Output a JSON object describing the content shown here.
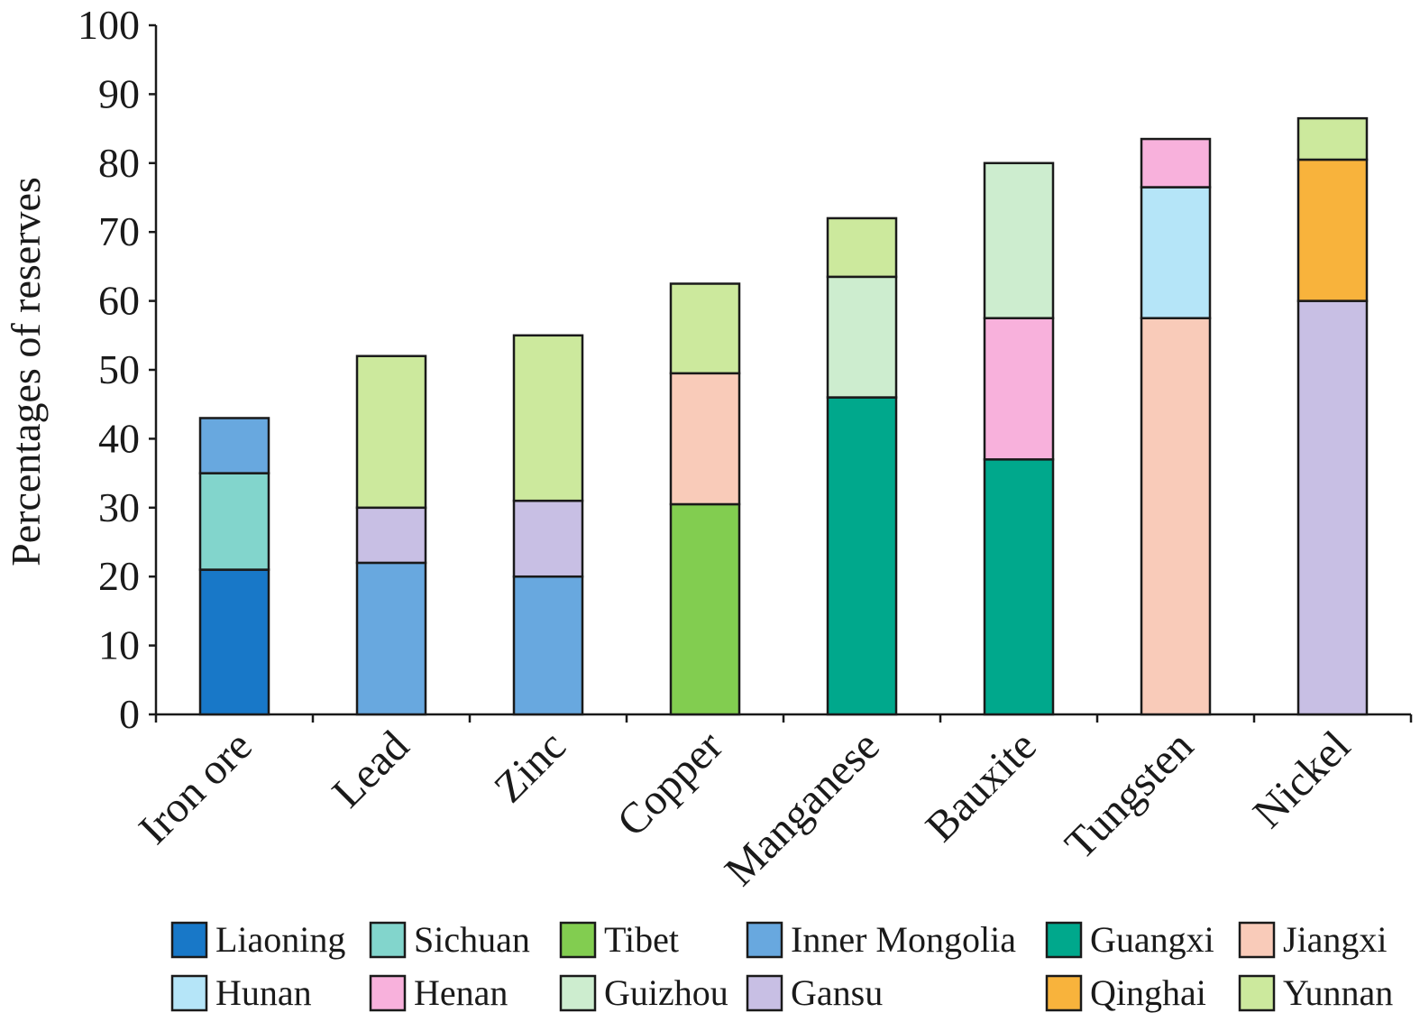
{
  "chart_data": {
    "type": "bar",
    "stacked": true,
    "title": "",
    "xlabel": "",
    "ylabel": "Percentages of reserves",
    "ylim": [
      0,
      100
    ],
    "yticks": [
      0,
      10,
      20,
      30,
      40,
      50,
      60,
      70,
      80,
      90,
      100
    ],
    "categories": [
      "Iron ore",
      "Lead",
      "Zinc",
      "Copper",
      "Manganese",
      "Bauxite",
      "Tungsten",
      "Nickel"
    ],
    "series": [
      {
        "name": "Liaoning",
        "color": "#1878c8",
        "values": [
          21,
          0,
          0,
          0,
          0,
          0,
          0,
          0
        ]
      },
      {
        "name": "Sichuan",
        "color": "#82d5cc",
        "values": [
          14,
          0,
          0,
          0,
          0,
          0,
          0,
          0
        ]
      },
      {
        "name": "Tibet",
        "color": "#82cd50",
        "values": [
          0,
          0,
          0,
          30.5,
          0,
          0,
          0,
          0
        ]
      },
      {
        "name": "Inner Mongolia",
        "color": "#68a8df",
        "values": [
          8,
          22,
          20,
          0,
          0,
          0,
          0,
          0
        ]
      },
      {
        "name": "Guangxi",
        "color": "#00a88c",
        "values": [
          0,
          0,
          0,
          0,
          46,
          37,
          0,
          0
        ]
      },
      {
        "name": "Jiangxi",
        "color": "#f9cbb9",
        "values": [
          0,
          0,
          0,
          19,
          0,
          0,
          57.5,
          0
        ]
      },
      {
        "name": "Hunan",
        "color": "#b5e5f8",
        "values": [
          0,
          0,
          0,
          0,
          0,
          0,
          19,
          0
        ]
      },
      {
        "name": "Henan",
        "color": "#f8b1dc",
        "values": [
          0,
          0,
          0,
          0,
          0,
          20.5,
          7,
          0
        ]
      },
      {
        "name": "Guizhou",
        "color": "#cdedcf",
        "values": [
          0,
          0,
          0,
          0,
          17.5,
          22.5,
          0,
          0
        ]
      },
      {
        "name": "Gansu",
        "color": "#c8bfe4",
        "values": [
          0,
          8,
          11,
          0,
          0,
          0,
          0,
          60
        ]
      },
      {
        "name": "Qinghai",
        "color": "#f8b33c",
        "values": [
          0,
          0,
          0,
          0,
          0,
          0,
          0,
          20.5
        ]
      },
      {
        "name": "Yunnan",
        "color": "#cce99d",
        "values": [
          0,
          22,
          24,
          13,
          8.5,
          0,
          0,
          6
        ]
      }
    ],
    "legend_position": "bottom",
    "grid": false
  }
}
